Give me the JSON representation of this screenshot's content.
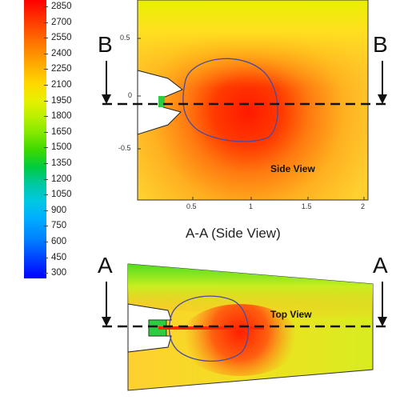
{
  "colorbar": {
    "labels": [
      "2850",
      "2700",
      "2550",
      "2400",
      "2250",
      "2100",
      "1950",
      "1800",
      "1650",
      "1500",
      "1350",
      "1200",
      "1050",
      "900",
      "750",
      "600",
      "450",
      "300"
    ]
  },
  "side_view": {
    "y_ticks": [
      "0.5",
      "0",
      "-0.5"
    ],
    "x_ticks": [
      "0.5",
      "1",
      "1.5",
      "2"
    ],
    "label": "Side View",
    "caption": "A-A (Side View)",
    "section_marker_left": "B",
    "section_marker_right": "B"
  },
  "top_view": {
    "label": "Top View",
    "section_marker_left": "A",
    "section_marker_right": "A"
  }
}
